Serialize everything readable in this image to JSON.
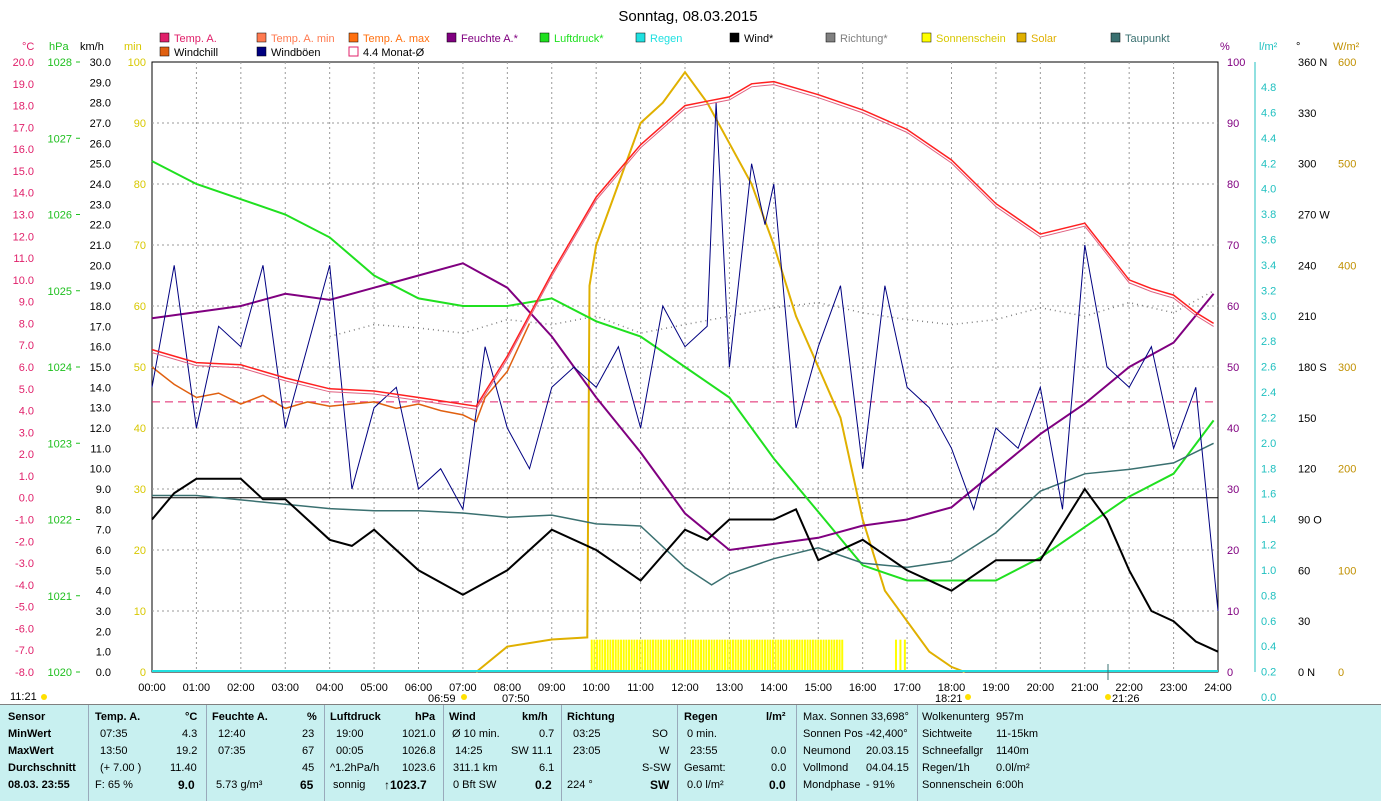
{
  "title": "Sonntag, 08.03.2015",
  "legend_row1": [
    {
      "label": "Temp. A.",
      "color": "#e0206a",
      "box": "fill"
    },
    {
      "label": "Temp. A. min",
      "color": "#ff7a50",
      "box": "fill"
    },
    {
      "label": "Temp. A. max",
      "color": "#ff7010",
      "box": "fill"
    },
    {
      "label": "Feuchte A.*",
      "color": "#800080",
      "box": "fill"
    },
    {
      "label": "Luftdruck*",
      "color": "#20e020",
      "box": "fill"
    },
    {
      "label": "Regen",
      "color": "#20e0e0",
      "box": "fill"
    },
    {
      "label": "Wind*",
      "color": "#000000",
      "box": "fill"
    },
    {
      "label": "Richtung*",
      "color": "#808080",
      "box": "fill"
    },
    {
      "label": "Sonnenschein",
      "color": "#ffff00",
      "box": "fill"
    },
    {
      "label": "Solar",
      "color": "#e0b000",
      "box": "fill"
    },
    {
      "label": "Taupunkt",
      "color": "#3a7070",
      "box": "fill"
    }
  ],
  "legend_row2": [
    {
      "label": "Windchill",
      "color": "#e06010",
      "box": "fill"
    },
    {
      "label": "Windböen",
      "color": "#000080",
      "box": "fill"
    },
    {
      "label": "4.4 Monat-Ø",
      "color": "#e0206a",
      "box": "outline"
    }
  ],
  "axis_headers": {
    "temp": "°C",
    "hpa": "hPa",
    "kmh": "km/h",
    "min": "min",
    "pct": "%",
    "rain": "l/m²",
    "deg": "°",
    "wm2": "W/m²"
  },
  "axes": {
    "temp": [
      "20.0",
      "19.0",
      "18.0",
      "17.0",
      "16.0",
      "15.0",
      "14.0",
      "13.0",
      "12.0",
      "11.0",
      "10.0",
      "9.0",
      "8.0",
      "7.0",
      "6.0",
      "5.0",
      "4.0",
      "3.0",
      "2.0",
      "1.0",
      "0.0",
      "-1.0",
      "-2.0",
      "-3.0",
      "-4.0",
      "-5.0",
      "-6.0",
      "-7.0",
      "-8.0"
    ],
    "hpa": [
      "1028",
      "1027",
      "1026",
      "1025",
      "1024",
      "1023",
      "1022",
      "1021",
      "1020"
    ],
    "kmh": [
      "30.0",
      "29.0",
      "28.0",
      "27.0",
      "26.0",
      "25.0",
      "24.0",
      "23.0",
      "22.0",
      "21.0",
      "20.0",
      "19.0",
      "18.0",
      "17.0",
      "16.0",
      "15.0",
      "14.0",
      "13.0",
      "12.0",
      "11.0",
      "10.0",
      "9.0",
      "8.0",
      "7.0",
      "6.0",
      "5.0",
      "4.0",
      "3.0",
      "2.0",
      "1.0",
      "0.0"
    ],
    "min": [
      "100",
      "90",
      "80",
      "70",
      "60",
      "50",
      "40",
      "30",
      "20",
      "10",
      "0"
    ],
    "pct": [
      "100",
      "90",
      "80",
      "70",
      "60",
      "50",
      "40",
      "30",
      "20",
      "10",
      "0"
    ],
    "rain": [
      "4.8",
      "4.6",
      "4.4",
      "4.2",
      "4.0",
      "3.8",
      "3.6",
      "3.4",
      "3.2",
      "3.0",
      "2.8",
      "2.6",
      "2.4",
      "2.2",
      "2.0",
      "1.8",
      "1.6",
      "1.4",
      "1.2",
      "1.0",
      "0.8",
      "0.6",
      "0.4",
      "0.2",
      "0.0"
    ],
    "deg": [
      "360 N",
      "330",
      "300",
      "270 W",
      "240",
      "210",
      "180 S",
      "150",
      "120",
      "90  O",
      "60",
      "30",
      "0   N"
    ],
    "wm2": [
      "600",
      "500",
      "400",
      "300",
      "200",
      "100",
      "0"
    ],
    "time": [
      "00:00",
      "01:00",
      "02:00",
      "03:00",
      "04:00",
      "05:00",
      "06:00",
      "07:00",
      "08:00",
      "09:00",
      "10:00",
      "11:00",
      "12:00",
      "13:00",
      "14:00",
      "15:00",
      "16:00",
      "17:00",
      "18:00",
      "19:00",
      "20:00",
      "21:00",
      "22:00",
      "23:00",
      "24:00"
    ]
  },
  "markers": {
    "left_time": "11:21",
    "sunrise": "06:59",
    "sunrise_b": "07:50",
    "sunset": "18:21",
    "moon": "21:26"
  },
  "chart_data": {
    "type": "line",
    "title": "Sonntag, 08.03.2015",
    "x_unit": "hours",
    "ylim_temp": [
      -8,
      20
    ],
    "ylim_hpa": [
      1020,
      1028
    ],
    "monthly_avg_temp": 4.4,
    "series": [
      {
        "name": "Temp. A.",
        "axis": "°C",
        "color": "#ff2020",
        "x": [
          0,
          1,
          2,
          3,
          4,
          5,
          6,
          7.3,
          8,
          9,
          10,
          11,
          12,
          12.5,
          13,
          13.5,
          14,
          15,
          16,
          17,
          18,
          19,
          20,
          21,
          21.5,
          22,
          22.5,
          23,
          23.5,
          23.9
        ],
        "y": [
          6.8,
          6.2,
          6.1,
          5.5,
          5.0,
          4.9,
          4.6,
          4.2,
          6.5,
          10.3,
          13.8,
          16.2,
          18.0,
          18.2,
          18.4,
          19.0,
          19.1,
          18.5,
          17.8,
          16.9,
          15.5,
          13.5,
          12.1,
          12.6,
          11.3,
          10.0,
          9.6,
          9.3,
          8.5,
          8.0
        ]
      },
      {
        "name": "Windchill",
        "axis": "°C",
        "color": "#e06010",
        "x": [
          0,
          0.5,
          1,
          1.5,
          2,
          2.5,
          3,
          3.5,
          4,
          4.5,
          5,
          5.5,
          6,
          6.5,
          7,
          7.3,
          7.5,
          8,
          8.5
        ],
        "y": [
          6.0,
          5.2,
          4.6,
          4.8,
          4.3,
          4.7,
          4.1,
          4.4,
          4.2,
          4.3,
          4.4,
          4.1,
          4.3,
          4.0,
          3.8,
          3.5,
          4.6,
          5.8,
          8.0
        ]
      },
      {
        "name": "Feuchte A.*",
        "axis": "%",
        "color": "#800080",
        "x": [
          0,
          1,
          2,
          3,
          4,
          5,
          6,
          7,
          8,
          9,
          10,
          11,
          12,
          13,
          14,
          15,
          16,
          17,
          18,
          19,
          20,
          21,
          22,
          23,
          23.9
        ],
        "y": [
          58,
          59,
          60,
          62,
          61,
          63,
          65,
          67,
          63,
          55,
          45,
          36,
          26,
          20,
          21,
          22,
          24,
          25,
          27,
          33,
          39,
          44,
          50,
          54,
          62
        ]
      },
      {
        "name": "Luftdruck*",
        "axis": "hPa",
        "color": "#20e020",
        "x": [
          0,
          1,
          2,
          3,
          4,
          5,
          6,
          7,
          8,
          9,
          10,
          11,
          12,
          13,
          14,
          15,
          16,
          17,
          18,
          19,
          20,
          21,
          22,
          23,
          23.9
        ],
        "y": [
          1026.7,
          1026.4,
          1026.2,
          1026.0,
          1025.7,
          1025.2,
          1024.9,
          1024.8,
          1024.8,
          1024.9,
          1024.6,
          1024.4,
          1024.0,
          1023.6,
          1022.8,
          1022.1,
          1021.4,
          1021.2,
          1021.2,
          1021.2,
          1021.5,
          1021.9,
          1022.3,
          1022.6,
          1023.3
        ]
      },
      {
        "name": "Taupunkt",
        "axis": "°C",
        "color": "#3a7070",
        "x": [
          0,
          1,
          2,
          3,
          4,
          5,
          6,
          7,
          8,
          9,
          10,
          11,
          12,
          12.6,
          13,
          14,
          15,
          16,
          17,
          18,
          19,
          20,
          21,
          22,
          23,
          23.9
        ],
        "y": [
          0.1,
          0.1,
          -0.1,
          -0.3,
          -0.5,
          -0.6,
          -0.6,
          -0.7,
          -0.9,
          -0.8,
          -1.2,
          -1.3,
          -3.2,
          -4.0,
          -3.5,
          -2.8,
          -2.3,
          -3.0,
          -3.2,
          -2.9,
          -1.6,
          0.3,
          1.1,
          1.3,
          1.6,
          2.5
        ]
      },
      {
        "name": "Wind*",
        "axis": "km/h",
        "color": "#000000",
        "x": [
          0,
          0.5,
          1,
          2,
          2.5,
          3,
          4,
          4.5,
          5,
          6,
          7,
          8,
          9,
          10,
          11,
          12,
          12.5,
          13,
          14,
          14.5,
          15,
          16,
          17,
          18,
          19,
          20,
          21,
          21.5,
          22,
          22.5,
          23,
          23.5,
          24
        ],
        "y": [
          7.5,
          8.8,
          9.5,
          9.5,
          8.5,
          8.5,
          6.5,
          6.2,
          7.0,
          5.0,
          3.8,
          5.0,
          7.0,
          6.0,
          4.5,
          7.0,
          6.5,
          7.5,
          7.5,
          8.0,
          5.5,
          6.5,
          5.0,
          4.0,
          5.5,
          5.5,
          9.0,
          7.5,
          5.0,
          3.0,
          2.5,
          1.5,
          1.0
        ]
      },
      {
        "name": "Windböen",
        "axis": "km/h",
        "color": "#000080",
        "x": [
          0,
          0.5,
          1,
          1.5,
          2,
          2.5,
          3,
          3.5,
          4,
          4.5,
          5,
          5.5,
          6,
          6.5,
          7,
          7.5,
          8,
          8.5,
          9,
          9.5,
          10,
          10.5,
          11,
          11.5,
          12,
          12.5,
          12.7,
          13,
          13.5,
          13.8,
          14,
          14.5,
          15,
          15.5,
          16,
          16.5,
          17,
          17.5,
          18,
          18.5,
          19,
          19.5,
          20,
          20.5,
          21,
          21.5,
          22,
          22.5,
          23,
          23.5,
          24
        ],
        "y": [
          14,
          20,
          12,
          17,
          16,
          20,
          12,
          16,
          20,
          9,
          13,
          14,
          9,
          10,
          8,
          16,
          12,
          10,
          14,
          15,
          14,
          16,
          12,
          18,
          16,
          17,
          28,
          15,
          25,
          22,
          24,
          12,
          16,
          19,
          10,
          19,
          14,
          13,
          11,
          8,
          12,
          11,
          14,
          8,
          21,
          15,
          14,
          16,
          11,
          14,
          3
        ]
      },
      {
        "name": "Richtung*",
        "axis": "°",
        "color": "#808080",
        "x": [
          4,
          5,
          6,
          7,
          8,
          9,
          10,
          11,
          12,
          13,
          14,
          15,
          16,
          17,
          18,
          19,
          20,
          21,
          22,
          23,
          23.9
        ],
        "y": [
          198,
          205,
          203,
          200,
          208,
          205,
          210,
          200,
          205,
          210,
          215,
          218,
          212,
          208,
          205,
          208,
          215,
          210,
          218,
          212,
          225
        ]
      },
      {
        "name": "Solar",
        "axis": "W/m²",
        "color": "#e0b000",
        "x": [
          7.3,
          8,
          9,
          9.8,
          9.85,
          10,
          10.5,
          11,
          11.5,
          12,
          12.5,
          13,
          13.5,
          14,
          14.5,
          15,
          15.5,
          16,
          16.5,
          17,
          17.5,
          18,
          18.3
        ],
        "y": [
          0,
          25,
          32,
          34,
          380,
          420,
          480,
          540,
          560,
          590,
          560,
          520,
          480,
          420,
          350,
          300,
          250,
          150,
          80,
          50,
          20,
          5,
          0
        ]
      },
      {
        "name": "Sonnenschein",
        "axis": "min",
        "color": "#ffff00",
        "x": [
          9.9,
          15.6
        ],
        "y": [
          5,
          5
        ]
      }
    ]
  },
  "info": {
    "headers": {
      "sensor": "Sensor",
      "temp": "Temp. A.",
      "temp_unit": "°C",
      "hum": "Feuchte A.",
      "hum_unit": "%",
      "press": "Luftdruck",
      "press_unit": "hPa",
      "wind": "Wind",
      "wind_unit": "km/h",
      "dir": "Richtung",
      "rain": "Regen",
      "rain_unit": "l/m²"
    },
    "rows": {
      "min": "MinWert",
      "max": "MaxWert",
      "avg": "Durchschnitt",
      "now": "08.03. 23:55"
    },
    "temp": {
      "min_t": "07:35",
      "min_v": "4.3",
      "max_t": "13:50",
      "max_v": "19.2",
      "avg_t": "(+ 7.00 )",
      "avg_v": "11.40",
      "now_l": "F: 65 %",
      "now_v": "9.0"
    },
    "hum": {
      "min_t": "12:40",
      "min_v": "23",
      "max_t": "07:35",
      "max_v": "67",
      "avg_v": "45",
      "now_l": "5.73 g/m³",
      "now_v": "65"
    },
    "press": {
      "min_t": "19:00",
      "min_v": "1021.0",
      "max_t": "00:05",
      "max_v": "1026.8",
      "avg_t": "^1.2hPa/h",
      "avg_v": "1023.6",
      "now_l": "sonnig",
      "now_v": "↑1023.7"
    },
    "wind": {
      "r1_l": "Ø 10 min.",
      "r1_v": "0.7",
      "r2_l": "14:25",
      "r2_v": "SW 11.1",
      "r3_l": "311.1 km",
      "r3_v": "6.1",
      "r4_l": "0 Bft SW",
      "r4_v": "0.2"
    },
    "dir": {
      "r1_t": "03:25",
      "r1_v": "SO",
      "r2_t": "23:05",
      "r2_v": "W",
      "r3_v": "S-SW",
      "r4_l": "224 °",
      "r4_v": "SW"
    },
    "rain": {
      "r1_l": "0 min.",
      "r2_l": "23:55",
      "r2_v": "0.0",
      "r3_l": "Gesamt:",
      "r3_v": "0.0",
      "r4_l": "0.0 l/m²",
      "r4_v": "0.0"
    },
    "astro": [
      {
        "l": "Max. Sonnen 33,698°",
        "v": ""
      },
      {
        "l": "Sonnen Pos -42,400°",
        "v": ""
      },
      {
        "l": "Neumond",
        "v": "20.03.15"
      },
      {
        "l": "Vollmond",
        "v": "04.04.15"
      },
      {
        "l": "Mondphase",
        "v": "- 91%"
      }
    ],
    "misc": [
      {
        "l": "Wolkenunterg",
        "v": "957m"
      },
      {
        "l": "Sichtweite",
        "v": "11-15km"
      },
      {
        "l": "Schneefallgr",
        "v": "1140m"
      },
      {
        "l": "Regen/1h",
        "v": "0.0l/m²"
      },
      {
        "l": "Sonnenschein",
        "v": "6:00h"
      }
    ]
  }
}
